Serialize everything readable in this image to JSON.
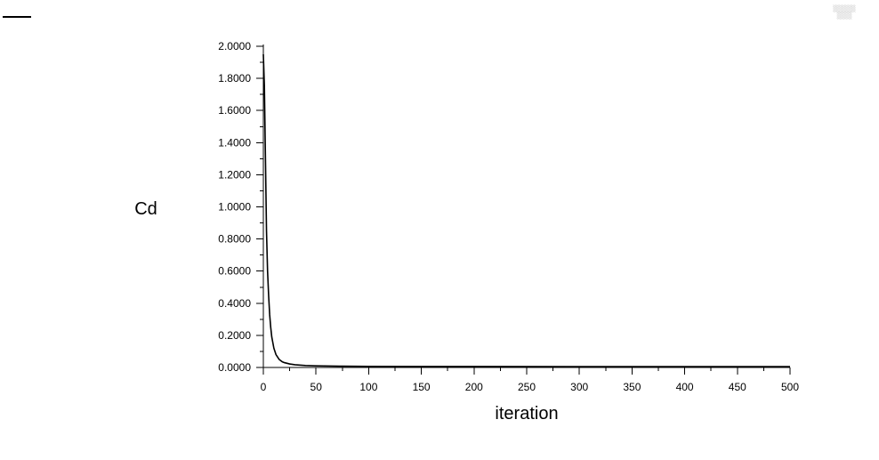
{
  "chart_data": {
    "type": "line",
    "title": "",
    "xlabel": "iteration",
    "ylabel": "Cd",
    "xlim": [
      0,
      500
    ],
    "ylim": [
      0,
      2
    ],
    "x_ticks": [
      0,
      50,
      100,
      150,
      200,
      250,
      300,
      350,
      400,
      450,
      500
    ],
    "x_tick_labels": [
      "0",
      "50",
      "100",
      "150",
      "200",
      "250",
      "300",
      "350",
      "400",
      "450",
      "500"
    ],
    "y_ticks": [
      0,
      0.2,
      0.4,
      0.6,
      0.8,
      1.0,
      1.2,
      1.4,
      1.6,
      1.8,
      2.0
    ],
    "y_tick_labels": [
      "0.0000",
      "0.2000",
      "0.4000",
      "0.6000",
      "0.8000",
      "1.0000",
      "1.2000",
      "1.4000",
      "1.6000",
      "1.8000",
      "2.0000"
    ],
    "grid": false,
    "series": [
      {
        "name": "Cd",
        "color": "#000000",
        "x": [
          0,
          1,
          2,
          3,
          4,
          5,
          6,
          7,
          8,
          10,
          12,
          15,
          18,
          20,
          25,
          30,
          40,
          50,
          75,
          100,
          150,
          200,
          300,
          400,
          500
        ],
        "y": [
          1.95,
          1.75,
          1.3,
          0.85,
          0.6,
          0.45,
          0.33,
          0.25,
          0.19,
          0.12,
          0.08,
          0.05,
          0.035,
          0.03,
          0.022,
          0.017,
          0.012,
          0.01,
          0.008,
          0.007,
          0.006,
          0.006,
          0.005,
          0.005,
          0.005
        ]
      }
    ]
  }
}
